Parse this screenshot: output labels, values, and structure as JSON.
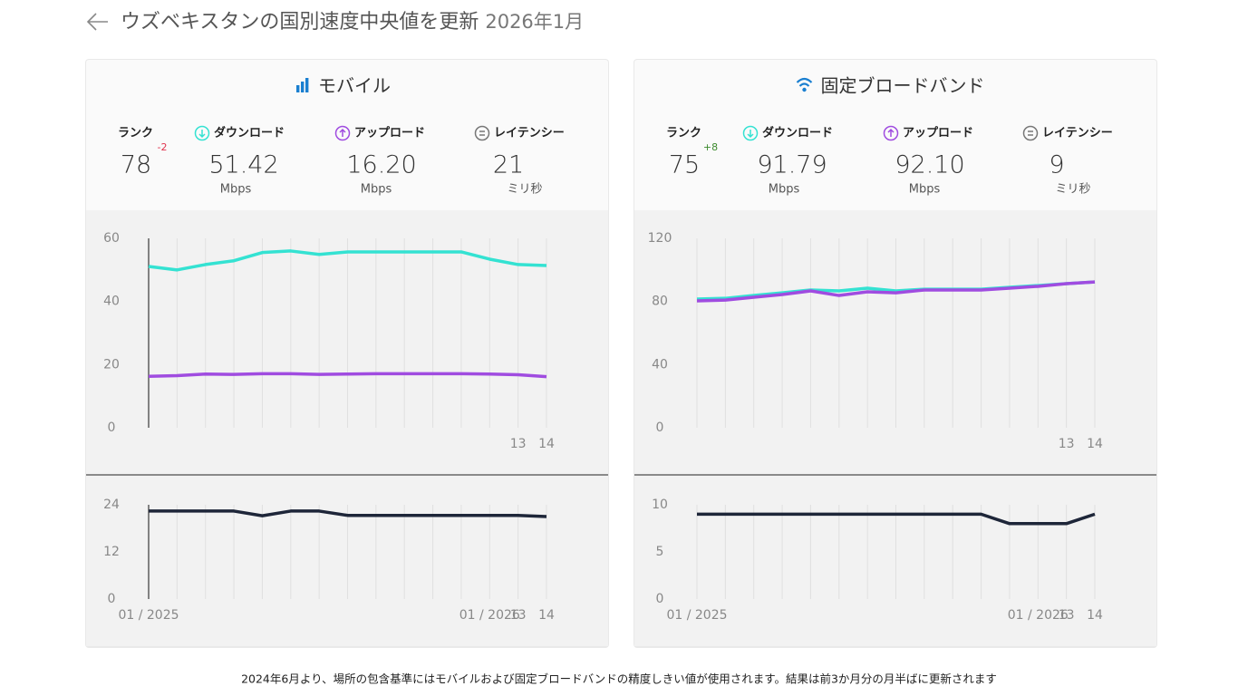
{
  "header": {
    "title": "ウズベキスタンの国別速度中央値を更新",
    "date": "2026年1月"
  },
  "panels": [
    {
      "title": "モバイル",
      "stats": {
        "rank": {
          "label": "ランク",
          "value": "78",
          "change": "-2"
        },
        "download": {
          "label": "ダウンロード",
          "value": "51.42",
          "unit": "Mbps"
        },
        "upload": {
          "label": "アップロード",
          "value": "16.20",
          "unit": "Mbps"
        },
        "latency": {
          "label": "レイテンシー",
          "value": "21",
          "unit": "ミリ秒"
        }
      }
    },
    {
      "title": "固定ブロードバンド",
      "stats": {
        "rank": {
          "label": "ランク",
          "value": "75",
          "change": "+8"
        },
        "download": {
          "label": "ダウンロード",
          "value": "91.79",
          "unit": "Mbps"
        },
        "upload": {
          "label": "アップロード",
          "value": "92.10",
          "unit": "Mbps"
        },
        "latency": {
          "label": "レイテンシー",
          "value": "9",
          "unit": "ミリ秒"
        }
      }
    }
  ],
  "chart_data": [
    {
      "type": "line",
      "categories": [
        null,
        null,
        null,
        null,
        null,
        null,
        null,
        null,
        null,
        null,
        null,
        null,
        null,
        "13",
        "14"
      ],
      "series": [
        {
          "name": "ダウンロード",
          "color": "#34e2d2",
          "values": [
            51.1,
            50,
            51.7,
            52.9,
            55.5,
            56,
            54.9,
            55.7,
            55.7,
            55.7,
            55.7,
            55.7,
            53.4,
            51.7,
            51.4
          ]
        },
        {
          "name": "アップロード",
          "color": "#a04ce0",
          "values": [
            16.3,
            16.5,
            17,
            16.9,
            17.1,
            17.1,
            16.9,
            17,
            17.1,
            17.1,
            17.1,
            17.1,
            17,
            16.8,
            16.2
          ]
        }
      ],
      "ylim": [
        0,
        60
      ],
      "yticks": [
        0,
        20,
        40,
        60
      ]
    },
    {
      "type": "line",
      "categories": [
        "01 / 2025",
        null,
        null,
        null,
        null,
        null,
        null,
        null,
        null,
        null,
        null,
        null,
        "01 / 2026",
        "13",
        "14"
      ],
      "series": [
        {
          "name": "レイテンシー",
          "color": "#1e2639",
          "values": [
            22.4,
            22.4,
            22.4,
            22.4,
            21.2,
            22.4,
            22.4,
            21.3,
            21.3,
            21.3,
            21.3,
            21.3,
            21.3,
            21.3,
            21
          ]
        }
      ],
      "ylim": [
        0,
        24
      ],
      "yticks": [
        0,
        12,
        24
      ]
    },
    {
      "type": "line",
      "categories": [
        null,
        null,
        null,
        null,
        null,
        null,
        null,
        null,
        null,
        null,
        null,
        null,
        null,
        "13",
        "14"
      ],
      "series": [
        {
          "name": "ダウンロード",
          "color": "#34e2d2",
          "values": [
            81.5,
            82,
            83.8,
            85.5,
            87.3,
            86.7,
            88.4,
            86.7,
            87.8,
            87.8,
            87.8,
            89,
            90.1,
            91.3,
            92.4
          ]
        },
        {
          "name": "アップロード",
          "color": "#a04ce0",
          "values": [
            80.4,
            80.9,
            82.7,
            84.4,
            86.7,
            83.8,
            86.1,
            85.5,
            87.3,
            87.3,
            87.3,
            88.4,
            89.6,
            91.3,
            92.4
          ]
        }
      ],
      "ylim": [
        0,
        120
      ],
      "yticks": [
        0,
        40,
        80,
        120
      ]
    },
    {
      "type": "line",
      "categories": [
        "01 / 2025",
        null,
        null,
        null,
        null,
        null,
        null,
        null,
        null,
        null,
        null,
        null,
        "01 / 2026",
        "13",
        "14"
      ],
      "series": [
        {
          "name": "レイテンシー",
          "color": "#1e2639",
          "values": [
            9,
            9,
            9,
            9,
            9,
            9,
            9,
            9,
            9,
            9,
            9,
            8,
            8,
            8,
            9
          ]
        }
      ],
      "ylim": [
        0,
        10
      ],
      "yticks": [
        0,
        5,
        10
      ]
    }
  ],
  "footer": "2024年6月より、場所の包含基準にはモバイルおよび固定ブロードバンドの精度しきい値が使用されます。結果は前3か月分の月半ばに更新されます"
}
